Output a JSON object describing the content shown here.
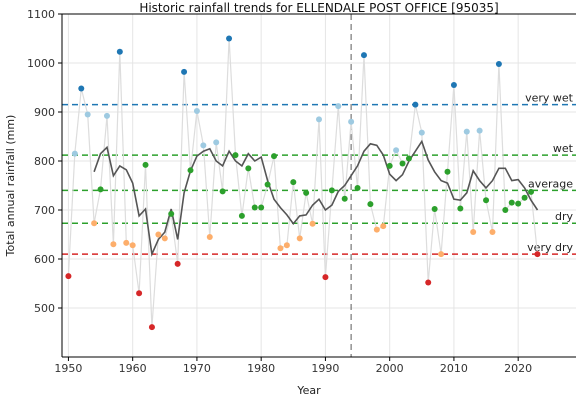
{
  "chart_data": {
    "type": "scatter",
    "title": "Historic rainfall trends for ELLENDALE POST OFFICE [95035]",
    "xlabel": "Year",
    "ylabel": "Total annual rainfall (mm)",
    "xlim": [
      1949,
      2029
    ],
    "ylim": [
      400,
      1100
    ],
    "x_ticks": [
      1950,
      1960,
      1970,
      1980,
      1990,
      2000,
      2010,
      2020
    ],
    "y_ticks": [
      500,
      600,
      700,
      800,
      900,
      1000,
      1100
    ],
    "grid": true,
    "reference_year": 1994,
    "thresholds": [
      {
        "label": "very wet",
        "value": 915,
        "color": "#1f77b4"
      },
      {
        "label": "wet",
        "value": 812,
        "color": "#2ca02c"
      },
      {
        "label": "average",
        "value": 740,
        "color": "#2ca02c"
      },
      {
        "label": "dry",
        "value": 673,
        "color": "#2ca02c"
      },
      {
        "label": "very dry",
        "value": 610,
        "color": "#d62728"
      }
    ],
    "category_colors": {
      "very_wet": "#1f77b4",
      "wet": "#9ecae1",
      "average": "#2ca02c",
      "dry": "#fdae6b",
      "very_dry": "#d62728"
    },
    "line_color": "#dddddd",
    "trend_color": "#555555",
    "series": [
      {
        "type": "annual",
        "x": [
          1950,
          1951,
          1952,
          1953,
          1954,
          1955,
          1956,
          1957,
          1958,
          1959,
          1960,
          1961,
          1962,
          1963,
          1964,
          1965,
          1966,
          1967,
          1968,
          1969,
          1970,
          1971,
          1972,
          1973,
          1974,
          1975,
          1976,
          1977,
          1978,
          1979,
          1980,
          1981,
          1982,
          1983,
          1984,
          1985,
          1986,
          1987,
          1988,
          1989,
          1990,
          1991,
          1992,
          1993,
          1994,
          1995,
          1996,
          1997,
          1998,
          1999,
          2000,
          2001,
          2002,
          2003,
          2004,
          2005,
          2006,
          2007,
          2008,
          2009,
          2010,
          2011,
          2012,
          2013,
          2014,
          2015,
          2016,
          2017,
          2018,
          2019,
          2020,
          2021,
          2022,
          2023
        ],
        "y": [
          565,
          815,
          948,
          895,
          673,
          742,
          892,
          630,
          1023,
          633,
          628,
          530,
          792,
          461,
          650,
          642,
          692,
          590,
          982,
          781,
          902,
          832,
          645,
          838,
          738,
          1050,
          812,
          688,
          785,
          705,
          705,
          752,
          810,
          622,
          628,
          757,
          642,
          735,
          672,
          885,
          563,
          740,
          912,
          723,
          880,
          745,
          1016,
          712,
          660,
          667,
          790,
          822,
          795,
          805,
          915,
          858,
          552,
          702,
          610,
          778,
          955,
          703,
          860,
          655,
          862,
          720,
          655,
          998,
          700,
          715,
          713,
          725,
          737,
          610
        ],
        "categories": [
          "very_dry",
          "wet",
          "very_wet",
          "wet",
          "dry",
          "average",
          "wet",
          "dry",
          "very_wet",
          "dry",
          "dry",
          "very_dry",
          "average",
          "very_dry",
          "dry",
          "dry",
          "average",
          "very_dry",
          "very_wet",
          "average",
          "wet",
          "wet",
          "dry",
          "wet",
          "average",
          "very_wet",
          "average",
          "average",
          "average",
          "average",
          "average",
          "average",
          "average",
          "dry",
          "dry",
          "average",
          "dry",
          "average",
          "dry",
          "wet",
          "very_dry",
          "average",
          "wet",
          "average",
          "wet",
          "average",
          "very_wet",
          "average",
          "dry",
          "dry",
          "average",
          "wet",
          "average",
          "average",
          "very_wet",
          "wet",
          "very_dry",
          "average",
          "dry",
          "average",
          "very_wet",
          "average",
          "wet",
          "dry",
          "wet",
          "average",
          "dry",
          "very_wet",
          "average",
          "average",
          "average",
          "average",
          "average",
          "very_dry"
        ]
      },
      {
        "type": "moving_average",
        "x": [
          1954,
          1955,
          1956,
          1957,
          1958,
          1959,
          1960,
          1961,
          1962,
          1963,
          1964,
          1965,
          1966,
          1967,
          1968,
          1969,
          1970,
          1971,
          1972,
          1973,
          1974,
          1975,
          1976,
          1977,
          1978,
          1979,
          1980,
          1981,
          1982,
          1983,
          1984,
          1985,
          1986,
          1987,
          1988,
          1989,
          1990,
          1991,
          1992,
          1993,
          1994,
          1995,
          1996,
          1997,
          1998,
          1999,
          2000,
          2001,
          2002,
          2003,
          2004,
          2005,
          2006,
          2007,
          2008,
          2009,
          2010,
          2011,
          2012,
          2013,
          2014,
          2015,
          2016,
          2017,
          2018,
          2019,
          2020,
          2021,
          2022,
          2023
        ],
        "y": [
          778,
          815,
          828,
          770,
          790,
          782,
          755,
          688,
          702,
          610,
          640,
          655,
          702,
          640,
          735,
          780,
          810,
          820,
          825,
          800,
          790,
          820,
          800,
          790,
          815,
          800,
          808,
          760,
          722,
          705,
          690,
          672,
          688,
          690,
          710,
          722,
          700,
          710,
          738,
          750,
          770,
          790,
          820,
          835,
          832,
          812,
          773,
          760,
          772,
          800,
          820,
          840,
          802,
          778,
          760,
          755,
          722,
          720,
          735,
          780,
          760,
          745,
          760,
          785,
          785,
          760,
          762,
          745,
          720,
          700
        ]
      }
    ]
  }
}
